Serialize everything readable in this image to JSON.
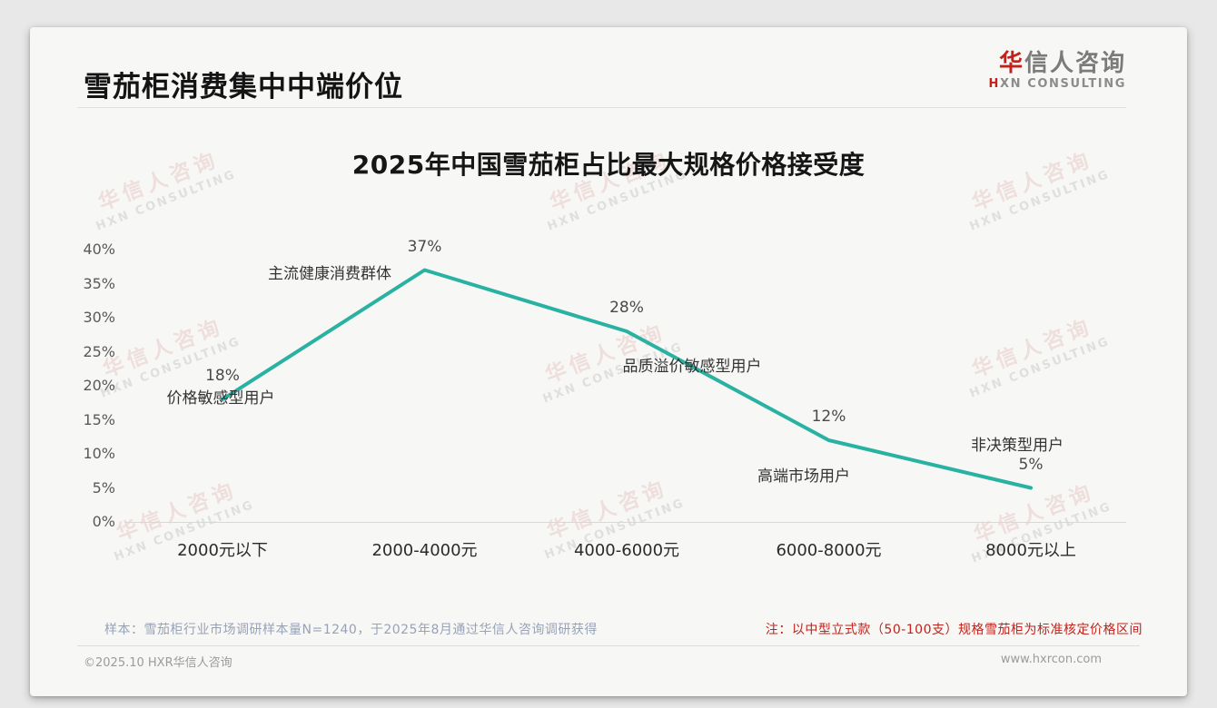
{
  "page": {
    "title": "雪茄柜消费集中中端价位",
    "logo": {
      "cn_accent": "华",
      "cn_rest": "信人咨询",
      "en_accent": "H",
      "en_rest": "XN CONSULTING"
    },
    "watermark": {
      "line1": "华信人咨询",
      "line2": "HXN CONSULTING"
    },
    "footer": {
      "sample_note": "样本：雪茄柜行业市场调研样本量N=1240，于2025年8月通过华信人咨询调研获得",
      "price_note": "注：以中型立式款（50-100支）规格雪茄柜为标准核定价格区间",
      "copyright": "©2025.10 HXR华信人咨询",
      "website": "www.hxrcon.com"
    }
  },
  "colors": {
    "accent_red": "#c0231c",
    "line_teal": "#29b2a2",
    "card_bg": "#f7f7f5",
    "page_bg": "#e8e8e8"
  },
  "chart_data": {
    "type": "line",
    "title": "2025年中国雪茄柜占比最大规格价格接受度",
    "categories": [
      "2000元以下",
      "2000-4000元",
      "4000-6000元",
      "6000-8000元",
      "8000元以上"
    ],
    "values": [
      18,
      37,
      28,
      12,
      5
    ],
    "value_labels": [
      "18%",
      "37%",
      "28%",
      "12%",
      "5%"
    ],
    "annotations": [
      "价格敏感型用户",
      "主流健康消费群体",
      "品质溢价敏感型用户",
      "高端市场用户",
      "非决策型用户"
    ],
    "y_ticks": [
      "40%",
      "35%",
      "30%",
      "25%",
      "20%",
      "15%",
      "10%",
      "5%",
      "0%"
    ],
    "xlabel": "",
    "ylabel": "",
    "ylim": [
      0,
      40
    ],
    "grid": false,
    "legend": false,
    "line_color": "#29b2a2"
  }
}
